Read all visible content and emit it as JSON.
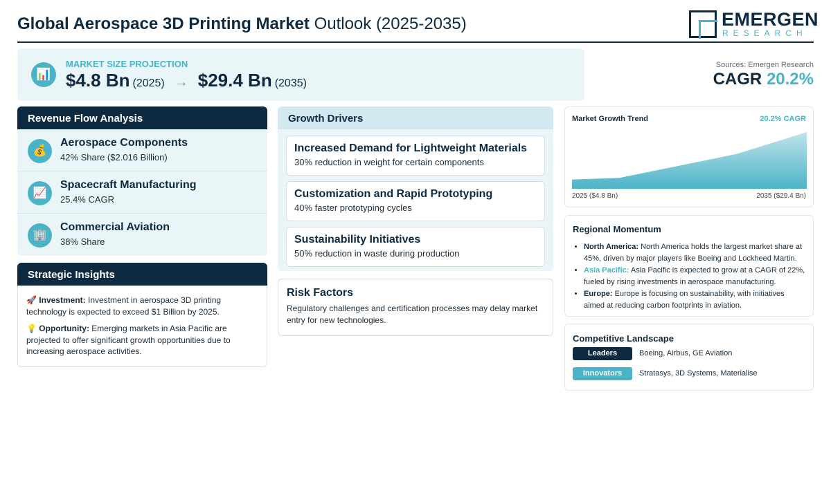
{
  "header": {
    "title_bold": "Global Aerospace 3D Printing Market",
    "title_rest": "Outlook (2025-2035)",
    "logo_name": "EMERGEN",
    "logo_sub": "RESEARCH"
  },
  "projection": {
    "icon": "bar-chart-icon",
    "label": "MARKET SIZE PROJECTION",
    "start_value": "$4.8 Bn",
    "start_year": "(2025)",
    "arrow": "→",
    "end_value": "$29.4 Bn",
    "end_year": "(2035)"
  },
  "cagr": {
    "source": "Sources: Emergen Research",
    "label": "CAGR",
    "value": "20.2%"
  },
  "revenue": {
    "heading": "Revenue Flow Analysis",
    "items": [
      {
        "icon": "money-bag-icon",
        "glyph": "💰",
        "title": "Aerospace Components",
        "sub": "42% Share ($2.016 Billion)"
      },
      {
        "icon": "trending-up-icon",
        "glyph": "📈",
        "title": "Spacecraft Manufacturing",
        "sub": "25.4% CAGR"
      },
      {
        "icon": "building-icon",
        "glyph": "🏢",
        "title": "Commercial Aviation",
        "sub": "38% Share"
      }
    ]
  },
  "insights": {
    "heading": "Strategic Insights",
    "items": [
      {
        "icon": "rocket-icon",
        "glyph": "🚀",
        "label": "Investment:",
        "text": "Investment in aerospace 3D printing technology is expected to exceed $1 Billion by 2025."
      },
      {
        "icon": "lightbulb-icon",
        "glyph": "💡",
        "label": "Opportunity:",
        "text": "Emerging markets in Asia Pacific are projected to offer significant growth opportunities due to increasing aerospace activities."
      }
    ]
  },
  "drivers": {
    "heading": "Growth Drivers",
    "items": [
      {
        "title": "Increased Demand for Lightweight Materials",
        "sub": "30% reduction in weight for certain components"
      },
      {
        "title": "Customization and Rapid Prototyping",
        "sub": "40% faster prototyping cycles"
      },
      {
        "title": "Sustainability Initiatives",
        "sub": "50% reduction in waste during production"
      }
    ]
  },
  "risk": {
    "title": "Risk Factors",
    "text": "Regulatory challenges and certification processes may delay market entry for new technologies."
  },
  "chart_data": {
    "type": "area",
    "title": "Market Growth Trend",
    "annotation": "20.2% CAGR",
    "x_start_label": "2025 ($4.8 Bn)",
    "x_end_label": "2035 ($29.4 Bn)",
    "x": [
      2025,
      2027,
      2032,
      2035
    ],
    "values": [
      4.8,
      5.6,
      18.0,
      29.4
    ],
    "ylim": [
      0,
      29.4
    ],
    "fill_color": "#4bb3c7",
    "grid": false,
    "legend": "none"
  },
  "regional": {
    "heading": "Regional Momentum",
    "items": [
      {
        "name": "North America:",
        "highlight": false,
        "text": "North America holds the largest market share at 45%, driven by major players like Boeing and Lockheed Martin."
      },
      {
        "name": "Asia Pacific:",
        "highlight": true,
        "text": "Asia Pacific is expected to grow at a CAGR of 22%, fueled by rising investments in aerospace manufacturing."
      },
      {
        "name": "Europe:",
        "highlight": false,
        "text": "Europe is focusing on sustainability, with initiatives aimed at reducing carbon footprints in aviation."
      }
    ]
  },
  "competitive": {
    "heading": "Competitive Landscape",
    "rows": [
      {
        "badge": "Leaders",
        "color": "#0d2a40",
        "names": "Boeing, Airbus, GE Aviation"
      },
      {
        "badge": "Innovators",
        "color": "#4bb3c7",
        "names": "Stratasys, 3D Systems, Materialise"
      }
    ]
  },
  "colors": {
    "navy": "#0d2a40",
    "teal": "#4bb3c7",
    "light_panel": "#eaf5f8"
  }
}
